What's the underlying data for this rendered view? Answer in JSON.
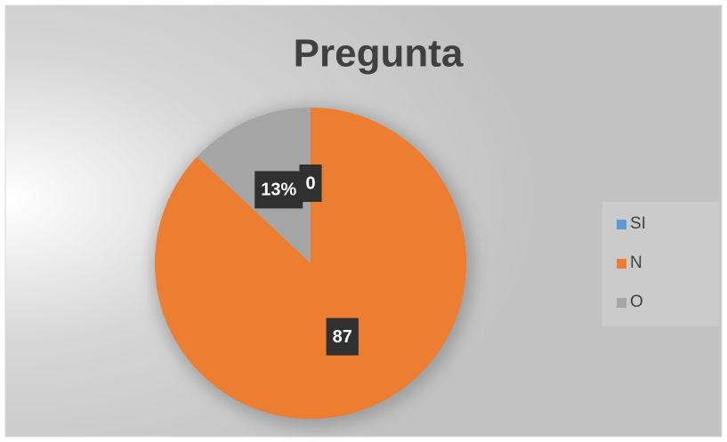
{
  "chart_data": {
    "type": "pie",
    "title": "Pregunta",
    "categories": [
      "SI",
      "N",
      "O"
    ],
    "values": [
      0,
      87,
      13
    ],
    "value_labels": [
      "0",
      "87",
      "13%"
    ],
    "colors": [
      "#5b9bd5",
      "#ed7d31",
      "#a5a5a5"
    ],
    "legend": "right"
  }
}
